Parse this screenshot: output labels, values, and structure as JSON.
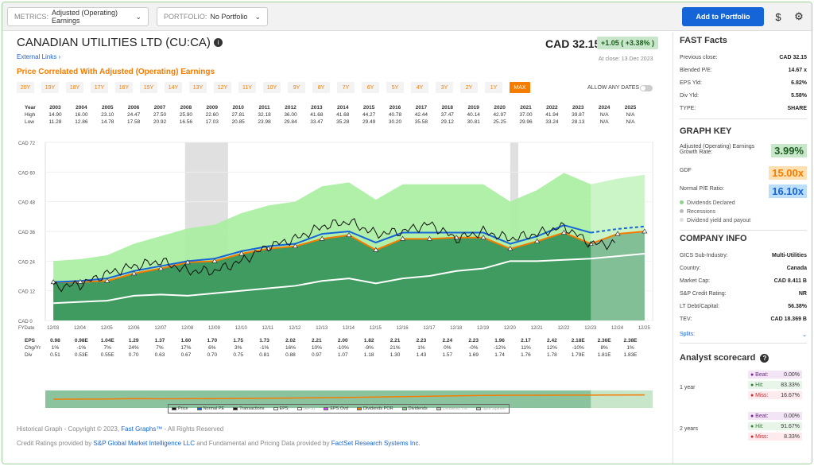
{
  "topbar": {
    "metrics_label": "METRICS:",
    "metrics_value": "Adjusted (Operating) Earnings",
    "portfolio_label": "PORTFOLIO:",
    "portfolio_value": "No Portfolio",
    "add_button": "Add to Portfolio",
    "dollar_icon": "$",
    "gear_icon": "gear-icon"
  },
  "header": {
    "company": "CANADIAN UTILITIES LTD",
    "ticker": "(CU:CA)",
    "price": "CAD 32.15",
    "change": "+1.05 ( +3.38% )",
    "at_close": "At close: 13 Dec 2023",
    "external_links": "External Links",
    "price_correlated": "Price Correlated With Adjusted (Operating) Earnings",
    "allow_any_dates": "ALLOW ANY DATES"
  },
  "ranges": [
    "20Y",
    "19Y",
    "18Y",
    "17Y",
    "16Y",
    "15Y",
    "14Y",
    "13Y",
    "12Y",
    "11Y",
    "10Y",
    "9Y",
    "8Y",
    "7Y",
    "6Y",
    "5Y",
    "4Y",
    "3Y",
    "2Y",
    "1Y",
    "MAX"
  ],
  "year_table": {
    "labels": [
      "Year",
      "High",
      "Low"
    ],
    "years": [
      "2003",
      "2004",
      "2005",
      "2006",
      "2007",
      "2008",
      "2009",
      "2010",
      "2011",
      "2012",
      "2013",
      "2014",
      "2015",
      "2016",
      "2017",
      "2018",
      "2019",
      "2020",
      "2021",
      "2022",
      "2023",
      "2024",
      "2025"
    ],
    "high": [
      "14.90",
      "16.00",
      "23.10",
      "24.47",
      "27.50",
      "25.90",
      "22.60",
      "27.81",
      "32.18",
      "36.00",
      "41.68",
      "41.68",
      "44.27",
      "40.78",
      "42.44",
      "37.47",
      "40.14",
      "42.97",
      "37.00",
      "41.94",
      "39.87",
      "N/A",
      "N/A"
    ],
    "low": [
      "11.28",
      "12.86",
      "14.78",
      "17.58",
      "20.92",
      "16.56",
      "17.03",
      "20.85",
      "23.98",
      "29.84",
      "33.47",
      "35.28",
      "29.49",
      "30.20",
      "35.58",
      "29.12",
      "30.81",
      "25.25",
      "29.96",
      "33.24",
      "28.13",
      "N/A",
      "N/A"
    ]
  },
  "chart_data": {
    "type": "area",
    "ylabel": "",
    "yticks": [
      "CAD 72",
      "CAD 60",
      "CAD 48",
      "CAD 36",
      "CAD 24",
      "CAD 12",
      "CAD 0"
    ],
    "ylim": [
      0,
      72
    ],
    "x_fy": [
      "FYDate",
      "12/03",
      "12/04",
      "12/05",
      "12/06",
      "12/07",
      "12/08",
      "12/09",
      "12/10",
      "12/11",
      "12/12",
      "12/13",
      "12/14",
      "12/15",
      "12/16",
      "12/17",
      "12/18",
      "12/19",
      "12/20",
      "12/21",
      "12/22",
      "12/23",
      "12/24",
      "12/25"
    ],
    "years": [
      2003,
      2004,
      2005,
      2006,
      2007,
      2008,
      2009,
      2010,
      2011,
      2012,
      2013,
      2014,
      2015,
      2016,
      2017,
      2018,
      2019,
      2020,
      2021,
      2022,
      2023,
      2024,
      2025
    ],
    "series": [
      {
        "name": "Price",
        "values": [
          13.5,
          14.5,
          19,
          22,
          24,
          20,
          20,
          24,
          30,
          33,
          38,
          40,
          35,
          36,
          39,
          33,
          36,
          33,
          35,
          38,
          31,
          null,
          null
        ]
      },
      {
        "name": "Normal PE",
        "values": [
          15.5,
          16,
          17,
          20,
          22,
          24,
          25,
          28,
          30,
          31,
          35,
          36,
          31.5,
          35.5,
          35.5,
          35.5,
          35.5,
          31,
          34,
          38.5,
          35.5,
          37,
          38
        ]
      },
      {
        "name": "Dividends",
        "values": [
          15.5,
          15.6,
          16,
          19,
          21,
          23.5,
          24,
          27,
          29,
          30,
          33,
          34.5,
          28.5,
          33,
          33,
          33.5,
          33.5,
          29,
          32,
          35.5,
          31,
          35,
          36
        ]
      },
      {
        "name": "Dividend Yld",
        "values": [
          7,
          7.5,
          8,
          10,
          10.5,
          10,
          11,
          12,
          13,
          14,
          16,
          17,
          15,
          17,
          18,
          20,
          21,
          24,
          24,
          24.5,
          25,
          26,
          27
        ]
      }
    ],
    "recessions": [
      [
        2007.9,
        2009.5
      ],
      [
        2020.0,
        2020.3
      ]
    ]
  },
  "eps_table": {
    "labels": [
      "EPS",
      "Chg/Yr",
      "Div"
    ],
    "eps": [
      "0.98",
      "0.98E",
      "1.04E",
      "1.29",
      "1.37",
      "1.60",
      "1.70",
      "1.75",
      "1.73",
      "2.02",
      "2.21",
      "2.00",
      "1.82",
      "2.21",
      "2.23",
      "2.24",
      "2.23",
      "1.96",
      "2.17",
      "2.42",
      "2.18E",
      "2.36E",
      "2.38E"
    ],
    "chg": [
      "1%",
      "-1%",
      "7%",
      "24%",
      "7%",
      "17%",
      "6%",
      "3%",
      "-1%",
      "16%",
      "10%",
      "-10%",
      "-9%",
      "21%",
      "1%",
      "0%",
      "-0%",
      "-12%",
      "11%",
      "12%",
      "-10%",
      "8%",
      "1%"
    ],
    "div": [
      "0.51",
      "0.53E",
      "0.55E",
      "0.70",
      "0.63",
      "0.67",
      "0.70",
      "0.75",
      "0.81",
      "0.88",
      "0.97",
      "1.07",
      "1.18",
      "1.30",
      "1.43",
      "1.57",
      "1.69",
      "1.74",
      "1.76",
      "1.78",
      "1.79E",
      "1.81E",
      "1.83E"
    ]
  },
  "legend": [
    "Price",
    "Normal PE",
    "Transactions",
    "EPS",
    "(EPS)",
    "EPS Ovd",
    "Dividends POR",
    "Dividends",
    "Dividend Yld",
    "Split Spinoff"
  ],
  "footer": {
    "line1_a": "Historical Graph - Copyright © 2023,",
    "line1_link": "Fast Graphs™",
    "line1_b": "- All Rights Reserved",
    "line2_a": "Credit Ratings provided by",
    "line2_link1": "S&P Global Market Intelligence LLC",
    "line2_b": "and Fundamental and Pricing Data provided by",
    "line2_link2": "FactSet Research Systems Inc."
  },
  "sidebar": {
    "fast_facts_title": "FAST Facts",
    "fast_facts": [
      {
        "label": "Previous close:",
        "value": "CAD 32.15"
      },
      {
        "label": "Blended P/E:",
        "value": "14.67 x"
      },
      {
        "label": "EPS Yld:",
        "value": "6.82%"
      },
      {
        "label": "Div Yld:",
        "value": "5.58%"
      },
      {
        "label": "TYPE:",
        "value": "SHARE"
      }
    ],
    "graph_key_title": "GRAPH KEY",
    "gk_growth_label": "Adjusted (Operating) Earnings Growth Rate:",
    "gk_growth_value": "3.99%",
    "gk_gdf_label": "GDF",
    "gk_gdf_value": "15.00x",
    "gk_npe_label": "Normal P/E Ratio:",
    "gk_npe_value": "16.10x",
    "gk_dots": [
      "Dividends Declared",
      "Recessions",
      "Dividend yield and payout"
    ],
    "company_info_title": "COMPANY INFO",
    "company_info": [
      {
        "label": "GICS Sub-Industry:",
        "value": "Multi-Utilities"
      },
      {
        "label": "Country:",
        "value": "Canada"
      },
      {
        "label": "Market Cap:",
        "value": "CAD 8.411 B"
      },
      {
        "label": "S&P Credit Rating:",
        "value": "NR"
      },
      {
        "label": "LT Debt/Capital:",
        "value": "56.38%"
      },
      {
        "label": "TEV:",
        "value": "CAD 18.369 B"
      }
    ],
    "splits": "Splits:",
    "analyst_title": "Analyst scorecard",
    "analyst": [
      {
        "period": "1 year",
        "beat": "0.00%",
        "hit": "83.33%",
        "miss": "16.67%"
      },
      {
        "period": "2 years",
        "beat": "0.00%",
        "hit": "91.67%",
        "miss": "8.33%"
      }
    ],
    "beat_label": "Beat:",
    "hit_label": "Hit:",
    "miss_label": "Miss:"
  },
  "colors": {
    "accent_blue": "#1565d8",
    "orange": "#f57c00",
    "green_dark": "#3f9b5f",
    "green_light": "#a8eea0"
  }
}
